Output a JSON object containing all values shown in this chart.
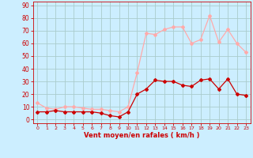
{
  "x": [
    0,
    1,
    2,
    3,
    4,
    5,
    6,
    7,
    8,
    9,
    10,
    11,
    12,
    13,
    14,
    15,
    16,
    17,
    18,
    19,
    20,
    21,
    22,
    23
  ],
  "y_mean": [
    6,
    6,
    7,
    6,
    6,
    6,
    6,
    5,
    3,
    2,
    6,
    20,
    24,
    31,
    30,
    30,
    27,
    26,
    31,
    32,
    24,
    32,
    20,
    19
  ],
  "y_gust": [
    13,
    9,
    8,
    10,
    10,
    9,
    8,
    8,
    7,
    6,
    10,
    37,
    68,
    67,
    71,
    73,
    73,
    60,
    63,
    82,
    61,
    71,
    60,
    53
  ],
  "mean_color": "#cc0000",
  "gust_color": "#ffaaaa",
  "bg_color": "#cceeff",
  "grid_color": "#aacccc",
  "axis_color": "#cc0000",
  "xlabel": "Vent moyen/en rafales ( km/h )",
  "ylabel_ticks": [
    0,
    10,
    20,
    30,
    40,
    50,
    60,
    70,
    80,
    90
  ],
  "xlim": [
    -0.5,
    23.5
  ],
  "ylim": [
    -3,
    93
  ],
  "marker": "D",
  "markersize": 2,
  "linewidth": 0.9
}
